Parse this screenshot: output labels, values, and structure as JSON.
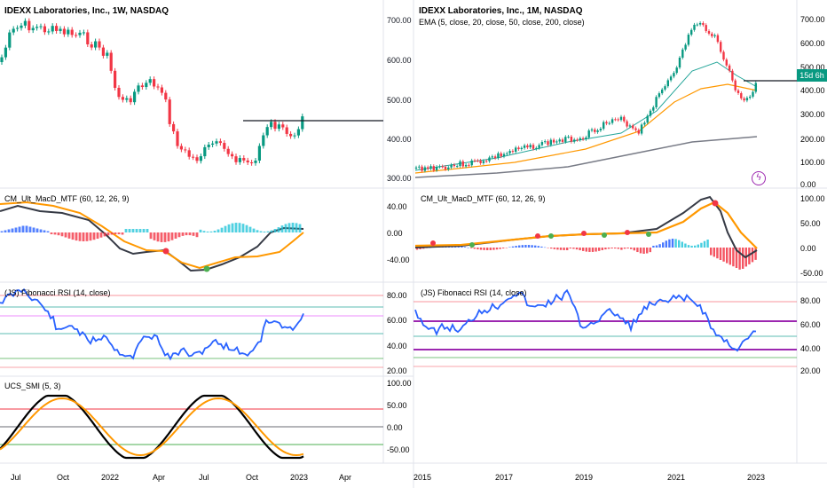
{
  "left_chart": {
    "title": "IDEXX Laboratories, Inc., 1W, NASDAQ",
    "price_ticks": [
      "700.00",
      "600.00",
      "500.00",
      "400.00",
      "300.00"
    ],
    "macd_title": "CM_Ult_MacD_MTF (60, 12, 26, 9)",
    "macd_ticks": [
      "40.00",
      "0.00",
      "-40.00"
    ],
    "rsi_title": "(JS) Fibonacci RSI (14, close)",
    "rsi_ticks": [
      "80.00",
      "60.00",
      "40.00",
      "20.00"
    ],
    "smi_title": "UCS_SMI (5, 3)",
    "smi_ticks": [
      "100.00",
      "50.00",
      "0.00",
      "-50.00"
    ],
    "time_ticks": [
      "Jul",
      "Oct",
      "2022",
      "Apr",
      "Jul",
      "Oct",
      "2023",
      "Apr"
    ]
  },
  "right_chart": {
    "title": "IDEXX Laboratories, Inc., 1M, NASDAQ",
    "subtitle": "EMA (5, close, 20, close, 50, close, 200, close)",
    "price_ticks": [
      "700.00",
      "600.00",
      "500.00",
      "400.00",
      "300.00",
      "200.00",
      "100.00",
      "0.00"
    ],
    "countdown_badge": "15d 6h",
    "macd_title": "CM_Ult_MacD_MTF (60, 12, 26, 9)",
    "macd_ticks": [
      "100.00",
      "50.00",
      "0.00",
      "-50.00"
    ],
    "rsi_title": "(JS) Fibonacci RSI (14, close)",
    "rsi_ticks": [
      "80.00",
      "60.00",
      "40.00",
      "20.00"
    ],
    "time_ticks": [
      "2015",
      "2017",
      "2019",
      "2021",
      "2023"
    ]
  },
  "icons": {
    "alert": "lightning-bolt-icon"
  },
  "colors": {
    "up": "#089981",
    "down": "#f23645",
    "ema_fast": "#26a69a",
    "ema_mid": "#ff9800",
    "ema_slow": "#787b86",
    "rsi": "#2962ff",
    "fib_purple": "#9c27b0"
  }
}
